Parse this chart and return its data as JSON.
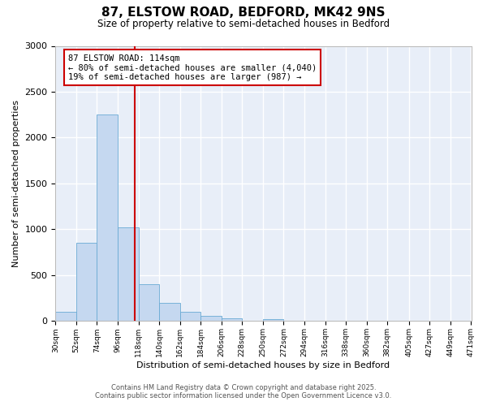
{
  "title": "87, ELSTOW ROAD, BEDFORD, MK42 9NS",
  "subtitle": "Size of property relative to semi-detached houses in Bedford",
  "xlabel": "Distribution of semi-detached houses by size in Bedford",
  "ylabel": "Number of semi-detached properties",
  "bar_color": "#c5d8f0",
  "bar_edge_color": "#6aaad4",
  "background_color": "#e8eef8",
  "grid_color": "#ffffff",
  "bin_edges": [
    30,
    52,
    74,
    96,
    118,
    140,
    162,
    184,
    206,
    228,
    250,
    272,
    294,
    316,
    338,
    360,
    382,
    405,
    427,
    449,
    471
  ],
  "bin_labels": [
    "30sqm",
    "52sqm",
    "74sqm",
    "96sqm",
    "118sqm",
    "140sqm",
    "162sqm",
    "184sqm",
    "206sqm",
    "228sqm",
    "250sqm",
    "272sqm",
    "294sqm",
    "316sqm",
    "338sqm",
    "360sqm",
    "382sqm",
    "405sqm",
    "427sqm",
    "449sqm",
    "471sqm"
  ],
  "counts": [
    100,
    850,
    2250,
    1020,
    400,
    200,
    100,
    60,
    30,
    0,
    20,
    0,
    0,
    0,
    0,
    0,
    0,
    0,
    0,
    0,
    0
  ],
  "property_size": 114,
  "vline_color": "#cc0000",
  "annotation_line1": "87 ELSTOW ROAD: 114sqm",
  "annotation_line2": "← 80% of semi-detached houses are smaller (4,040)",
  "annotation_line3": "19% of semi-detached houses are larger (987) →",
  "annotation_box_color": "#cc0000",
  "ylim": [
    0,
    3000
  ],
  "yticks": [
    0,
    500,
    1000,
    1500,
    2000,
    2500,
    3000
  ],
  "footer_line1": "Contains HM Land Registry data © Crown copyright and database right 2025.",
  "footer_line2": "Contains public sector information licensed under the Open Government Licence v3.0."
}
